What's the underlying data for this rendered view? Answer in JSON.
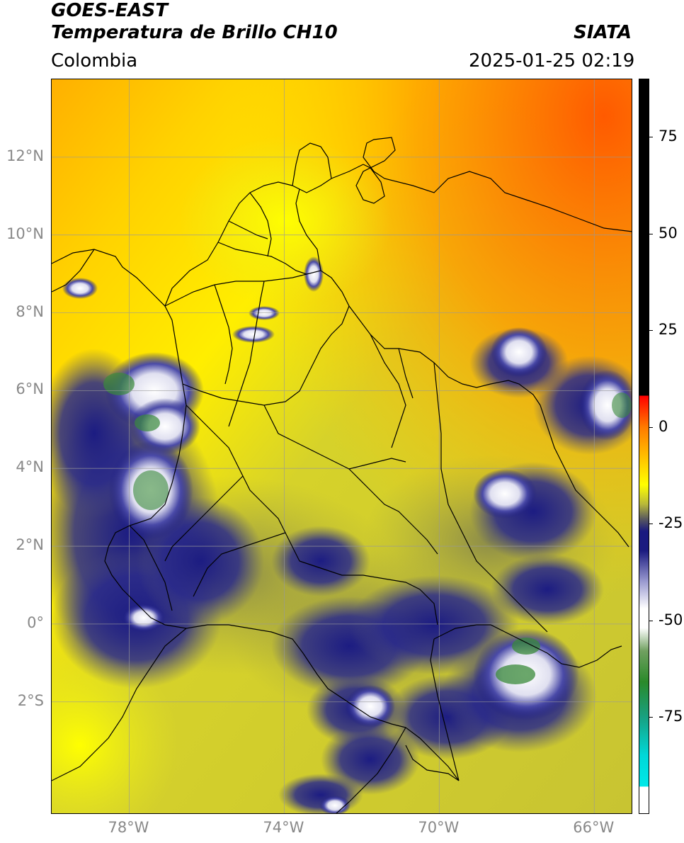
{
  "header": {
    "satellite": "GOES-EAST",
    "product": "Temperatura de Brillo CH10",
    "region": "Colombia",
    "timestamp": "2025-01-25 02:19",
    "agency": "SIATA"
  },
  "map": {
    "lat_labels": [
      "12°N",
      "10°N",
      "8°N",
      "6°N",
      "4°N",
      "2°N",
      "0°",
      "2°S"
    ],
    "lon_labels": [
      "78°W",
      "74°W",
      "70°W",
      "66°W"
    ],
    "lat_values": [
      12,
      10,
      8,
      6,
      4,
      2,
      0,
      -2
    ],
    "lon_values": [
      -78,
      -74,
      -70,
      -66
    ],
    "extent": {
      "lon_min": -80,
      "lon_max": -65,
      "lat_min": -4.9,
      "lat_max": 14
    },
    "colors": {
      "warm": "#ff6a00",
      "mid": "#ffff00",
      "olive": "#c9c92a",
      "cold": "#1a1a80",
      "coldest": "#ffffff",
      "core": "#3a8a3a"
    }
  },
  "colorbar": {
    "labels": [
      "75",
      "50",
      "25",
      "0",
      "-25",
      "-50",
      "-75"
    ],
    "values": [
      75,
      50,
      25,
      0,
      -25,
      -50,
      -75
    ],
    "range": [
      -100,
      90
    ]
  }
}
